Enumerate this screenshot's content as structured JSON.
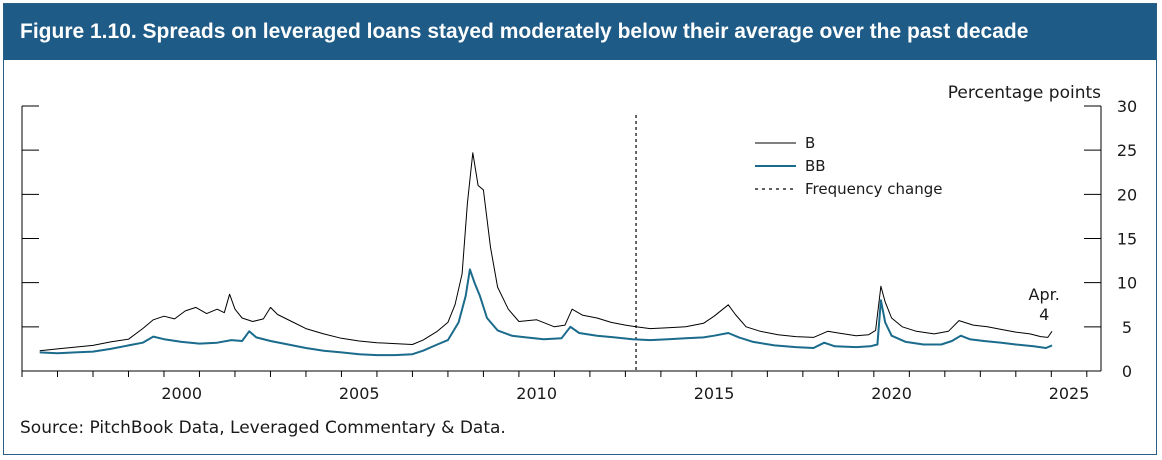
{
  "figure": {
    "title": "Figure 1.10. Spreads on leveraged loans stayed moderately below their average over the past decade",
    "source": "Source: PitchBook Data, Leveraged Commentary & Data."
  },
  "chart_data": {
    "type": "line",
    "title": "Figure 1.10. Spreads on leveraged loans stayed moderately below their average over the past decade",
    "ylabel": "Percentage points",
    "xlim": [
      1996.0,
      2026.4
    ],
    "ylim": [
      0,
      30
    ],
    "x_ticks": [
      2000,
      2005,
      2010,
      2015,
      2020,
      2025
    ],
    "y_ticks": [
      0,
      5,
      10,
      15,
      20,
      25,
      30
    ],
    "legend_position": "top-right",
    "grid": false,
    "annotation": {
      "text_line1": "Apr.",
      "text_line2": "4",
      "x": 2024.8,
      "y": 4.5
    },
    "frequency_change": {
      "label": "Frequency change",
      "x": 2013.3
    },
    "series": [
      {
        "name": "B",
        "color": "#000000",
        "points": [
          [
            1996.5,
            2.3
          ],
          [
            1997.0,
            2.5
          ],
          [
            1997.5,
            2.7
          ],
          [
            1998.0,
            2.9
          ],
          [
            1998.5,
            3.3
          ],
          [
            1999.0,
            3.6
          ],
          [
            1999.4,
            4.8
          ],
          [
            1999.7,
            5.8
          ],
          [
            2000.0,
            6.2
          ],
          [
            2000.3,
            5.9
          ],
          [
            2000.6,
            6.8
          ],
          [
            2000.9,
            7.2
          ],
          [
            2001.2,
            6.5
          ],
          [
            2001.5,
            7.0
          ],
          [
            2001.7,
            6.6
          ],
          [
            2001.85,
            8.7
          ],
          [
            2002.0,
            7.0
          ],
          [
            2002.2,
            6.0
          ],
          [
            2002.5,
            5.6
          ],
          [
            2002.8,
            5.9
          ],
          [
            2003.0,
            7.2
          ],
          [
            2003.2,
            6.4
          ],
          [
            2003.6,
            5.6
          ],
          [
            2004.0,
            4.8
          ],
          [
            2004.5,
            4.2
          ],
          [
            2005.0,
            3.7
          ],
          [
            2005.5,
            3.4
          ],
          [
            2006.0,
            3.2
          ],
          [
            2006.5,
            3.1
          ],
          [
            2007.0,
            3.0
          ],
          [
            2007.3,
            3.5
          ],
          [
            2007.7,
            4.5
          ],
          [
            2008.0,
            5.5
          ],
          [
            2008.2,
            7.5
          ],
          [
            2008.4,
            11.0
          ],
          [
            2008.55,
            19.0
          ],
          [
            2008.7,
            24.7
          ],
          [
            2008.85,
            21.0
          ],
          [
            2009.0,
            20.5
          ],
          [
            2009.2,
            14.0
          ],
          [
            2009.4,
            9.5
          ],
          [
            2009.7,
            7.0
          ],
          [
            2010.0,
            5.6
          ],
          [
            2010.5,
            5.8
          ],
          [
            2011.0,
            5.0
          ],
          [
            2011.3,
            5.2
          ],
          [
            2011.5,
            7.0
          ],
          [
            2011.8,
            6.3
          ],
          [
            2012.2,
            6.0
          ],
          [
            2012.6,
            5.5
          ],
          [
            2013.0,
            5.2
          ],
          [
            2013.3,
            5.0
          ],
          [
            2013.7,
            4.8
          ],
          [
            2014.2,
            4.9
          ],
          [
            2014.7,
            5.0
          ],
          [
            2015.2,
            5.4
          ],
          [
            2015.5,
            6.2
          ],
          [
            2015.9,
            7.5
          ],
          [
            2016.1,
            6.4
          ],
          [
            2016.4,
            5.0
          ],
          [
            2016.8,
            4.5
          ],
          [
            2017.3,
            4.1
          ],
          [
            2017.8,
            3.9
          ],
          [
            2018.3,
            3.8
          ],
          [
            2018.7,
            4.5
          ],
          [
            2019.0,
            4.3
          ],
          [
            2019.5,
            4.0
          ],
          [
            2019.85,
            4.1
          ],
          [
            2020.05,
            4.6
          ],
          [
            2020.2,
            9.6
          ],
          [
            2020.32,
            7.8
          ],
          [
            2020.5,
            6.0
          ],
          [
            2020.8,
            5.0
          ],
          [
            2021.2,
            4.5
          ],
          [
            2021.7,
            4.2
          ],
          [
            2022.1,
            4.5
          ],
          [
            2022.4,
            5.7
          ],
          [
            2022.8,
            5.2
          ],
          [
            2023.2,
            5.0
          ],
          [
            2023.6,
            4.7
          ],
          [
            2024.0,
            4.4
          ],
          [
            2024.4,
            4.2
          ],
          [
            2024.7,
            3.9
          ],
          [
            2024.9,
            3.8
          ],
          [
            2025.02,
            4.5
          ]
        ]
      },
      {
        "name": "BB",
        "color": "#1a6b8c",
        "points": [
          [
            1996.5,
            2.1
          ],
          [
            1997.0,
            2.0
          ],
          [
            1997.5,
            2.1
          ],
          [
            1998.0,
            2.2
          ],
          [
            1998.5,
            2.5
          ],
          [
            1999.0,
            2.9
          ],
          [
            1999.4,
            3.2
          ],
          [
            1999.7,
            3.9
          ],
          [
            2000.0,
            3.6
          ],
          [
            2000.5,
            3.3
          ],
          [
            2001.0,
            3.1
          ],
          [
            2001.5,
            3.2
          ],
          [
            2001.9,
            3.5
          ],
          [
            2002.2,
            3.4
          ],
          [
            2002.4,
            4.5
          ],
          [
            2002.6,
            3.8
          ],
          [
            2003.0,
            3.4
          ],
          [
            2003.5,
            3.0
          ],
          [
            2004.0,
            2.6
          ],
          [
            2004.5,
            2.3
          ],
          [
            2005.0,
            2.1
          ],
          [
            2005.5,
            1.9
          ],
          [
            2006.0,
            1.8
          ],
          [
            2006.5,
            1.8
          ],
          [
            2007.0,
            1.9
          ],
          [
            2007.3,
            2.3
          ],
          [
            2007.7,
            3.0
          ],
          [
            2008.0,
            3.5
          ],
          [
            2008.3,
            5.5
          ],
          [
            2008.5,
            8.5
          ],
          [
            2008.62,
            11.5
          ],
          [
            2008.75,
            10.0
          ],
          [
            2008.9,
            8.5
          ],
          [
            2009.1,
            6.0
          ],
          [
            2009.4,
            4.6
          ],
          [
            2009.8,
            4.0
          ],
          [
            2010.2,
            3.8
          ],
          [
            2010.7,
            3.6
          ],
          [
            2011.2,
            3.7
          ],
          [
            2011.45,
            5.0
          ],
          [
            2011.7,
            4.3
          ],
          [
            2012.2,
            4.0
          ],
          [
            2012.7,
            3.8
          ],
          [
            2013.2,
            3.6
          ],
          [
            2013.7,
            3.5
          ],
          [
            2014.2,
            3.6
          ],
          [
            2014.7,
            3.7
          ],
          [
            2015.2,
            3.8
          ],
          [
            2015.5,
            4.0
          ],
          [
            2015.9,
            4.3
          ],
          [
            2016.2,
            3.8
          ],
          [
            2016.6,
            3.3
          ],
          [
            2017.2,
            2.9
          ],
          [
            2017.8,
            2.7
          ],
          [
            2018.3,
            2.6
          ],
          [
            2018.6,
            3.2
          ],
          [
            2018.9,
            2.8
          ],
          [
            2019.5,
            2.7
          ],
          [
            2019.9,
            2.8
          ],
          [
            2020.1,
            3.0
          ],
          [
            2020.2,
            8.0
          ],
          [
            2020.32,
            5.5
          ],
          [
            2020.5,
            4.0
          ],
          [
            2020.9,
            3.3
          ],
          [
            2021.4,
            3.0
          ],
          [
            2021.9,
            3.0
          ],
          [
            2022.2,
            3.4
          ],
          [
            2022.45,
            4.0
          ],
          [
            2022.7,
            3.6
          ],
          [
            2023.1,
            3.4
          ],
          [
            2023.6,
            3.2
          ],
          [
            2024.0,
            3.0
          ],
          [
            2024.5,
            2.8
          ],
          [
            2024.85,
            2.6
          ],
          [
            2025.02,
            2.9
          ]
        ]
      }
    ]
  }
}
